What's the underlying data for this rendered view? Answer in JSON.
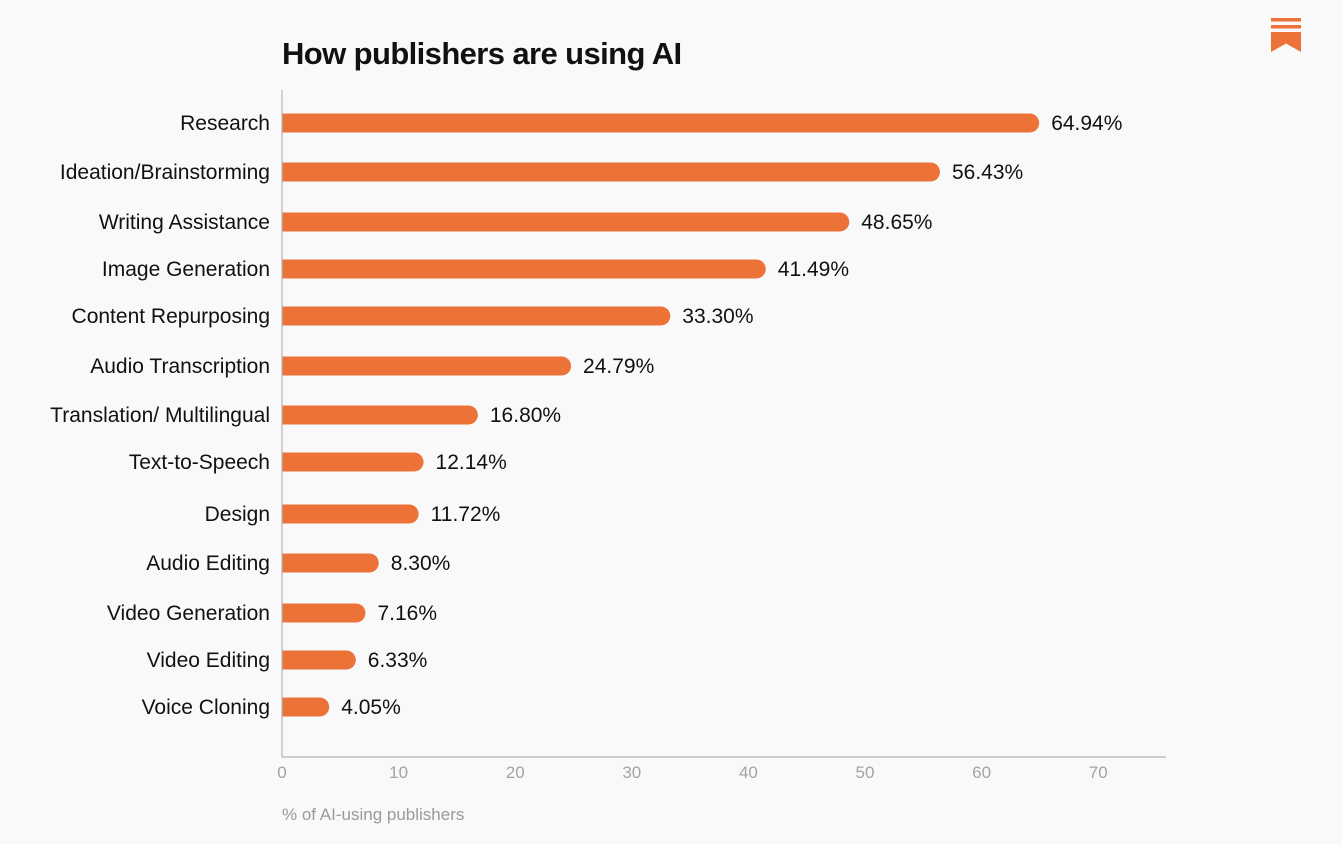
{
  "colors": {
    "background": "#f9f9f9",
    "bar": "#ec7238",
    "logo": "#ec7238",
    "axis_line": "#b5b5b5",
    "label_text": "#111111",
    "tick_text": "#a3a3a3"
  },
  "logo": {
    "icon": "bookmark-logo-icon"
  },
  "chart_data": {
    "type": "bar",
    "orientation": "horizontal",
    "title": "How publishers are using AI",
    "xlabel": "% of AI-using publishers",
    "ylabel": "",
    "xlim": [
      0,
      76
    ],
    "xticks": [
      0,
      10,
      20,
      30,
      40,
      50,
      60,
      70
    ],
    "grid": false,
    "categories": [
      "Research",
      "Ideation/Brainstorming",
      "Writing Assistance",
      "Image Generation",
      "Content Repurposing",
      "Audio Transcription",
      "Translation/ Multilingual",
      "Text-to-Speech",
      "Design",
      "Audio Editing",
      "Video Generation",
      "Video Editing",
      "Voice Cloning"
    ],
    "values": [
      64.94,
      56.43,
      48.65,
      41.49,
      33.3,
      24.79,
      16.8,
      12.14,
      11.72,
      8.3,
      7.16,
      6.33,
      4.05
    ],
    "value_labels": [
      "64.94%",
      "56.43%",
      "48.65%",
      "41.49%",
      "33.30%",
      "24.79%",
      "16.80%",
      "12.14%",
      "11.72%",
      "8.30%",
      "7.16%",
      "6.33%",
      "4.05%"
    ]
  }
}
